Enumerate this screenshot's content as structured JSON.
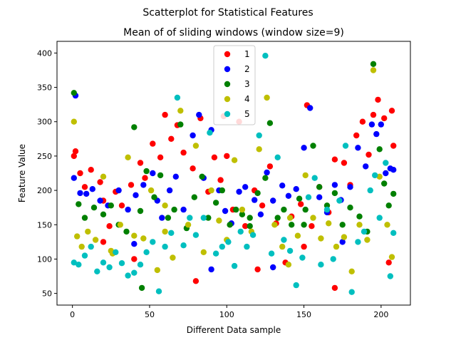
{
  "figure": {
    "suptitle": "Scatterplot for Statistical Features",
    "title": "Mean of of sliding windows (window size=9)"
  },
  "chart_data": {
    "type": "scatter",
    "title": "Mean of of sliding windows (window size=9)",
    "xlabel": "Different Data sample",
    "ylabel": "Feature Value",
    "xlim": [
      -10,
      219
    ],
    "ylim": [
      33,
      417
    ],
    "xticks": [
      0,
      50,
      100,
      150,
      200
    ],
    "yticks": [
      50,
      100,
      150,
      200,
      250,
      300,
      350,
      400
    ],
    "grid": false,
    "legend_position": "top-center",
    "series": [
      {
        "name": "1",
        "color": "#ff0000",
        "points": [
          [
            1,
            250
          ],
          [
            2,
            257
          ],
          [
            5,
            225
          ],
          [
            8,
            205
          ],
          [
            12,
            230
          ],
          [
            18,
            212
          ],
          [
            20,
            185
          ],
          [
            24,
            148
          ],
          [
            28,
            198
          ],
          [
            32,
            178
          ],
          [
            38,
            208
          ],
          [
            44,
            240
          ],
          [
            47,
            218
          ],
          [
            52,
            268
          ],
          [
            57,
            248
          ],
          [
            60,
            310
          ],
          [
            64,
            275
          ],
          [
            68,
            295
          ],
          [
            72,
            255
          ],
          [
            78,
            232
          ],
          [
            83,
            305
          ],
          [
            88,
            198
          ],
          [
            92,
            248
          ],
          [
            96,
            215
          ],
          [
            98,
            308
          ],
          [
            100,
            250
          ],
          [
            104,
            172
          ],
          [
            108,
            300
          ],
          [
            112,
            148
          ],
          [
            118,
            200
          ],
          [
            123,
            178
          ],
          [
            128,
            235
          ],
          [
            132,
            152
          ],
          [
            138,
            95
          ],
          [
            142,
            162
          ],
          [
            148,
            180
          ],
          [
            152,
            324
          ],
          [
            155,
            148
          ],
          [
            160,
            205
          ],
          [
            166,
            168
          ],
          [
            170,
            245
          ],
          [
            176,
            240
          ],
          [
            180,
            208
          ],
          [
            184,
            280
          ],
          [
            188,
            300
          ],
          [
            192,
            252
          ],
          [
            195,
            310
          ],
          [
            198,
            332
          ],
          [
            202,
            305
          ],
          [
            207,
            316
          ],
          [
            208,
            265
          ],
          [
            20,
            125
          ],
          [
            40,
            100
          ],
          [
            80,
            68
          ],
          [
            120,
            85
          ],
          [
            150,
            118
          ],
          [
            170,
            58
          ],
          [
            205,
            95
          ]
        ]
      },
      {
        "name": "2",
        "color": "#0000ff",
        "points": [
          [
            1,
            218
          ],
          [
            2,
            338
          ],
          [
            5,
            196
          ],
          [
            9,
            195
          ],
          [
            13,
            202
          ],
          [
            18,
            185
          ],
          [
            23,
            178
          ],
          [
            30,
            200
          ],
          [
            36,
            172
          ],
          [
            41,
            193
          ],
          [
            46,
            208
          ],
          [
            52,
            225
          ],
          [
            55,
            185
          ],
          [
            58,
            160
          ],
          [
            63,
            200
          ],
          [
            67,
            220
          ],
          [
            72,
            172
          ],
          [
            78,
            280
          ],
          [
            82,
            310
          ],
          [
            85,
            218
          ],
          [
            90,
            288
          ],
          [
            95,
            200
          ],
          [
            99,
            170
          ],
          [
            103,
            152
          ],
          [
            108,
            198
          ],
          [
            112,
            205
          ],
          [
            118,
            186
          ],
          [
            122,
            165
          ],
          [
            126,
            226
          ],
          [
            130,
            185
          ],
          [
            136,
            207
          ],
          [
            140,
            192
          ],
          [
            145,
            202
          ],
          [
            150,
            262
          ],
          [
            154,
            320
          ],
          [
            160,
            190
          ],
          [
            165,
            168
          ],
          [
            170,
            208
          ],
          [
            174,
            186
          ],
          [
            180,
            205
          ],
          [
            185,
            262
          ],
          [
            190,
            235
          ],
          [
            194,
            296
          ],
          [
            197,
            282
          ],
          [
            200,
            296
          ],
          [
            203,
            225
          ],
          [
            206,
            232
          ],
          [
            208,
            230
          ],
          [
            40,
            122
          ],
          [
            90,
            85
          ],
          [
            130,
            88
          ],
          [
            175,
            125
          ]
        ]
      },
      {
        "name": "3",
        "color": "#008000",
        "points": [
          [
            1,
            342
          ],
          [
            4,
            180
          ],
          [
            8,
            160
          ],
          [
            14,
            175
          ],
          [
            20,
            165
          ],
          [
            25,
            178
          ],
          [
            30,
            150
          ],
          [
            35,
            140
          ],
          [
            40,
            292
          ],
          [
            44,
            170
          ],
          [
            48,
            228
          ],
          [
            53,
            190
          ],
          [
            57,
            222
          ],
          [
            62,
            160
          ],
          [
            66,
            172
          ],
          [
            70,
            296
          ],
          [
            74,
            145
          ],
          [
            79,
            190
          ],
          [
            84,
            220
          ],
          [
            88,
            160
          ],
          [
            93,
            182
          ],
          [
            97,
            200
          ],
          [
            102,
            150
          ],
          [
            106,
            172
          ],
          [
            110,
            165
          ],
          [
            115,
            148
          ],
          [
            120,
            196
          ],
          [
            125,
            218
          ],
          [
            128,
            298
          ],
          [
            133,
            160
          ],
          [
            137,
            172
          ],
          [
            142,
            150
          ],
          [
            147,
            188
          ],
          [
            151,
            172
          ],
          [
            156,
            265
          ],
          [
            160,
            205
          ],
          [
            165,
            178
          ],
          [
            170,
            196
          ],
          [
            175,
            150
          ],
          [
            180,
            175
          ],
          [
            186,
            162
          ],
          [
            191,
            140
          ],
          [
            195,
            384
          ],
          [
            199,
            260
          ],
          [
            202,
            210
          ],
          [
            205,
            178
          ],
          [
            208,
            195
          ],
          [
            45,
            58
          ],
          [
            115,
            160
          ],
          [
            150,
            150
          ]
        ]
      },
      {
        "name": "4",
        "color": "#bfbf00",
        "points": [
          [
            1,
            300
          ],
          [
            3,
            133
          ],
          [
            6,
            118
          ],
          [
            10,
            140
          ],
          [
            15,
            128
          ],
          [
            20,
            220
          ],
          [
            26,
            108
          ],
          [
            31,
            150
          ],
          [
            36,
            248
          ],
          [
            40,
            134
          ],
          [
            46,
            130
          ],
          [
            51,
            200
          ],
          [
            55,
            84
          ],
          [
            60,
            178
          ],
          [
            65,
            102
          ],
          [
            70,
            316
          ],
          [
            75,
            150
          ],
          [
            80,
            265
          ],
          [
            85,
            110
          ],
          [
            90,
            200
          ],
          [
            95,
            156
          ],
          [
            100,
            128
          ],
          [
            105,
            244
          ],
          [
            110,
            172
          ],
          [
            116,
            140
          ],
          [
            121,
            260
          ],
          [
            126,
            335
          ],
          [
            131,
            150
          ],
          [
            136,
            118
          ],
          [
            141,
            160
          ],
          [
            146,
            134
          ],
          [
            151,
            222
          ],
          [
            156,
            160
          ],
          [
            161,
            130
          ],
          [
            166,
            152
          ],
          [
            171,
            118
          ],
          [
            176,
            132
          ],
          [
            181,
            82
          ],
          [
            186,
            150
          ],
          [
            191,
            128
          ],
          [
            195,
            375
          ],
          [
            199,
            220
          ],
          [
            204,
            150
          ],
          [
            207,
            103
          ],
          [
            25,
            112
          ],
          [
            60,
            140
          ],
          [
            140,
            92
          ]
        ]
      },
      {
        "name": "5",
        "color": "#00bfbf",
        "points": [
          [
            1,
            95
          ],
          [
            4,
            92
          ],
          [
            8,
            105
          ],
          [
            12,
            118
          ],
          [
            16,
            82
          ],
          [
            20,
            95
          ],
          [
            24,
            88
          ],
          [
            28,
            110
          ],
          [
            32,
            94
          ],
          [
            36,
            76
          ],
          [
            40,
            80
          ],
          [
            44,
            92
          ],
          [
            48,
            110
          ],
          [
            52,
            125
          ],
          [
            56,
            53
          ],
          [
            60,
            118
          ],
          [
            64,
            138
          ],
          [
            68,
            335
          ],
          [
            72,
            120
          ],
          [
            76,
            160
          ],
          [
            80,
            135
          ],
          [
            85,
            160
          ],
          [
            89,
            284
          ],
          [
            93,
            108
          ],
          [
            97,
            118
          ],
          [
            101,
            125
          ],
          [
            105,
            90
          ],
          [
            109,
            140
          ],
          [
            113,
            118
          ],
          [
            117,
            135
          ],
          [
            121,
            280
          ],
          [
            125,
            396
          ],
          [
            129,
            108
          ],
          [
            133,
            248
          ],
          [
            137,
            128
          ],
          [
            141,
            112
          ],
          [
            145,
            62
          ],
          [
            149,
            102
          ],
          [
            153,
            190
          ],
          [
            157,
            218
          ],
          [
            161,
            92
          ],
          [
            165,
            172
          ],
          [
            169,
            100
          ],
          [
            173,
            185
          ],
          [
            177,
            265
          ],
          [
            181,
            52
          ],
          [
            185,
            125
          ],
          [
            189,
            140
          ],
          [
            193,
            200
          ],
          [
            196,
            222
          ],
          [
            199,
            160
          ],
          [
            203,
            240
          ],
          [
            206,
            75
          ],
          [
            208,
            138
          ]
        ]
      }
    ]
  }
}
